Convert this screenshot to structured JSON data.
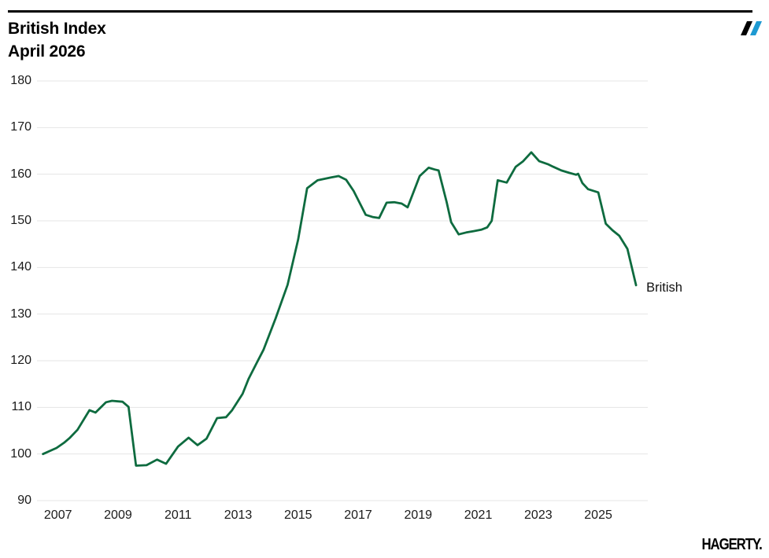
{
  "header": {
    "title_line1": "British Index",
    "title_line2": "April 2026"
  },
  "logo": {
    "name": "hagerty-double-slash",
    "slash1_color": "#000000",
    "slash2_color": "#1e9ad2"
  },
  "footer": {
    "brand": "HAGERTY."
  },
  "chart_data": {
    "type": "line",
    "title": "British Index",
    "subtitle": "April 2026",
    "xlabel": "",
    "ylabel": "",
    "ylim": [
      90,
      180
    ],
    "xlim": [
      2006.3,
      2026.65
    ],
    "yticks": [
      90,
      100,
      110,
      120,
      130,
      140,
      150,
      160,
      170,
      180
    ],
    "xticks": [
      2007,
      2009,
      2011,
      2013,
      2015,
      2017,
      2019,
      2021,
      2023,
      2025
    ],
    "grid": "horizontal",
    "grid_color": "#e4e4e4",
    "legend_position": "end-of-line",
    "end_label": "British",
    "series": [
      {
        "name": "British",
        "color": "#0e6b3f",
        "points": [
          [
            2006.5,
            100.0
          ],
          [
            2006.95,
            101.3
          ],
          [
            2007.2,
            102.4
          ],
          [
            2007.4,
            103.5
          ],
          [
            2007.65,
            105.2
          ],
          [
            2008.05,
            109.4
          ],
          [
            2008.25,
            108.9
          ],
          [
            2008.6,
            111.1
          ],
          [
            2008.8,
            111.4
          ],
          [
            2009.15,
            111.2
          ],
          [
            2009.35,
            110.1
          ],
          [
            2009.6,
            97.5
          ],
          [
            2009.95,
            97.6
          ],
          [
            2010.3,
            98.8
          ],
          [
            2010.6,
            97.9
          ],
          [
            2011.0,
            101.6
          ],
          [
            2011.35,
            103.5
          ],
          [
            2011.65,
            101.9
          ],
          [
            2011.95,
            103.3
          ],
          [
            2012.3,
            107.7
          ],
          [
            2012.6,
            107.9
          ],
          [
            2012.8,
            109.4
          ],
          [
            2013.15,
            112.9
          ],
          [
            2013.35,
            116.1
          ],
          [
            2013.6,
            119.3
          ],
          [
            2013.85,
            122.4
          ],
          [
            2014.25,
            129.1
          ],
          [
            2014.65,
            136.3
          ],
          [
            2015.0,
            146.0
          ],
          [
            2015.3,
            157.0
          ],
          [
            2015.65,
            158.7
          ],
          [
            2016.1,
            159.3
          ],
          [
            2016.35,
            159.6
          ],
          [
            2016.6,
            158.8
          ],
          [
            2016.85,
            156.4
          ],
          [
            2017.25,
            151.3
          ],
          [
            2017.5,
            150.8
          ],
          [
            2017.7,
            150.6
          ],
          [
            2017.95,
            153.9
          ],
          [
            2018.2,
            154.0
          ],
          [
            2018.45,
            153.7
          ],
          [
            2018.65,
            152.9
          ],
          [
            2019.05,
            159.6
          ],
          [
            2019.35,
            161.4
          ],
          [
            2019.55,
            161.0
          ],
          [
            2019.68,
            160.8
          ],
          [
            2019.95,
            154.0
          ],
          [
            2020.1,
            149.7
          ],
          [
            2020.35,
            147.1
          ],
          [
            2020.6,
            147.5
          ],
          [
            2020.85,
            147.8
          ],
          [
            2021.1,
            148.1
          ],
          [
            2021.3,
            148.6
          ],
          [
            2021.45,
            150.0
          ],
          [
            2021.65,
            158.7
          ],
          [
            2021.95,
            158.2
          ],
          [
            2022.25,
            161.6
          ],
          [
            2022.5,
            162.8
          ],
          [
            2022.77,
            164.7
          ],
          [
            2023.03,
            162.8
          ],
          [
            2023.34,
            162.1
          ],
          [
            2023.5,
            161.6
          ],
          [
            2023.77,
            160.8
          ],
          [
            2024.03,
            160.3
          ],
          [
            2024.26,
            159.9
          ],
          [
            2024.33,
            160.1
          ],
          [
            2024.47,
            158.1
          ],
          [
            2024.66,
            156.8
          ],
          [
            2025.0,
            156.1
          ],
          [
            2025.25,
            149.4
          ],
          [
            2025.47,
            148.0
          ],
          [
            2025.7,
            146.8
          ],
          [
            2025.97,
            144.0
          ],
          [
            2026.26,
            136.2
          ]
        ]
      }
    ]
  }
}
